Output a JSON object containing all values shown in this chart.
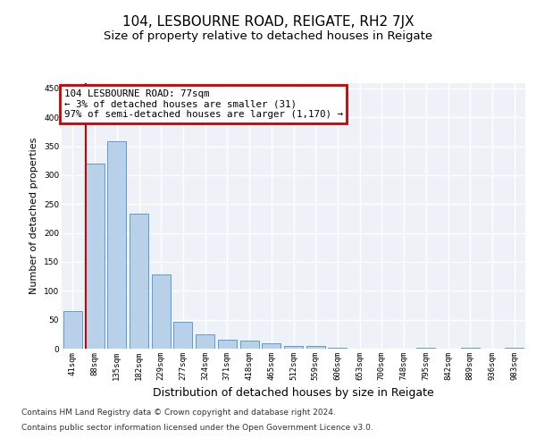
{
  "title": "104, LESBOURNE ROAD, REIGATE, RH2 7JX",
  "subtitle": "Size of property relative to detached houses in Reigate",
  "xlabel": "Distribution of detached houses by size in Reigate",
  "ylabel": "Number of detached properties",
  "bar_values": [
    65,
    320,
    358,
    234,
    128,
    46,
    25,
    16,
    14,
    10,
    5,
    5,
    2,
    0,
    0,
    0,
    2,
    0,
    2,
    0,
    1
  ],
  "categories": [
    "41sqm",
    "88sqm",
    "135sqm",
    "182sqm",
    "229sqm",
    "277sqm",
    "324sqm",
    "371sqm",
    "418sqm",
    "465sqm",
    "512sqm",
    "559sqm",
    "606sqm",
    "653sqm",
    "700sqm",
    "748sqm",
    "795sqm",
    "842sqm",
    "889sqm",
    "936sqm",
    "983sqm"
  ],
  "bar_color": "#b8d0e8",
  "bar_edge_color": "#5b9bd5",
  "red_line_x": 0.575,
  "annotation_line1": "104 LESBOURNE ROAD: 77sqm",
  "annotation_line2": "← 3% of detached houses are smaller (31)",
  "annotation_line3": "97% of semi-detached houses are larger (1,170) →",
  "annotation_box_edgecolor": "#cc0000",
  "ylim": [
    0,
    460
  ],
  "yticks": [
    0,
    50,
    100,
    150,
    200,
    250,
    300,
    350,
    400,
    450
  ],
  "footer_line1": "Contains HM Land Registry data © Crown copyright and database right 2024.",
  "footer_line2": "Contains public sector information licensed under the Open Government Licence v3.0.",
  "bg_color": "#eef2f8",
  "grid_color": "#ffffff",
  "title_fontsize": 11,
  "subtitle_fontsize": 9.5,
  "ylabel_fontsize": 8,
  "xlabel_fontsize": 9,
  "tick_fontsize": 6.5,
  "footer_fontsize": 6.5,
  "ann_fontsize": 7.8
}
